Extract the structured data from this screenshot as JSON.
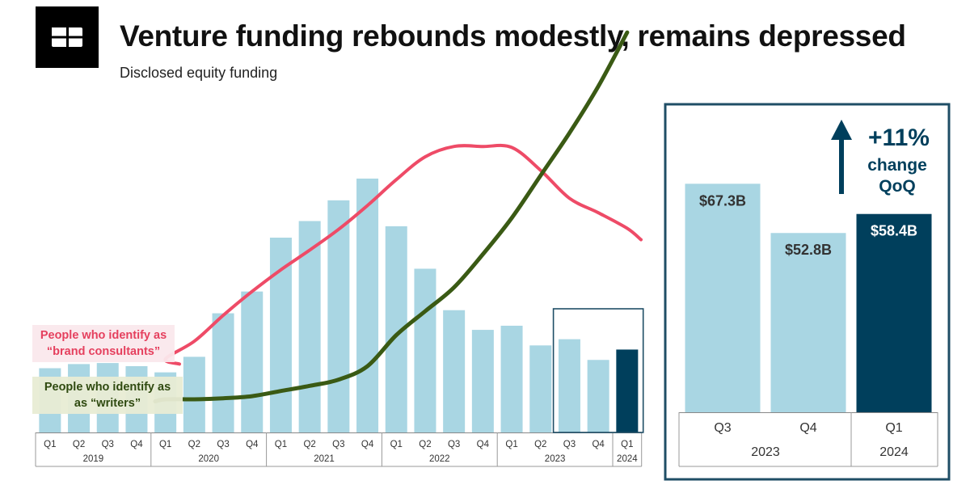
{
  "header": {
    "logo_icon": "cb-insights-logo-icon",
    "title": "Venture funding rebounds modestly, remains depressed",
    "subtitle": "Disclosed equity funding"
  },
  "colors": {
    "bar_light": "#a9d6e3",
    "bar_dark": "#003f5c",
    "brand_line": "#ee4b67",
    "writers_line": "#3a5a14",
    "frame": "#1f4e66",
    "axis_text": "#333333"
  },
  "chart_data": [
    {
      "type": "bar",
      "title": "",
      "categories": [
        "Q1",
        "Q2",
        "Q3",
        "Q4",
        "Q1",
        "Q2",
        "Q3",
        "Q4",
        "Q1",
        "Q2",
        "Q3",
        "Q4",
        "Q1",
        "Q2",
        "Q3",
        "Q4",
        "Q1",
        "Q2",
        "Q3",
        "Q4",
        "Q1"
      ],
      "category_years": [
        "2019",
        "2019",
        "2019",
        "2019",
        "2020",
        "2020",
        "2020",
        "2020",
        "2021",
        "2021",
        "2021",
        "2021",
        "2022",
        "2022",
        "2022",
        "2022",
        "2023",
        "2023",
        "2023",
        "2023",
        "2024"
      ],
      "year_groups": [
        {
          "label": "2019",
          "count": 4
        },
        {
          "label": "2020",
          "count": 4
        },
        {
          "label": "2021",
          "count": 4
        },
        {
          "label": "2022",
          "count": 4
        },
        {
          "label": "2023",
          "count": 4
        },
        {
          "label": "2024",
          "count": 1
        }
      ],
      "values": [
        62,
        66,
        67,
        64,
        58,
        73,
        115,
        136,
        188,
        204,
        224,
        245,
        199,
        158,
        118,
        99,
        103,
        84,
        90,
        70,
        80
      ],
      "highlight_index": 20,
      "ylim": [
        0,
        270
      ],
      "grid": false,
      "overlays": [
        {
          "name": "People who identify as “brand consultants”",
          "label_lines": [
            "People who identify as",
            "“brand consultants”"
          ],
          "y": [
            null,
            null,
            null,
            null,
            71,
            88,
            113,
            136,
            157,
            176,
            196,
            219,
            244,
            266,
            276,
            276,
            275,
            253,
            226,
            212,
            197
          ]
        },
        {
          "name": "People who identify as “writers”",
          "label_lines": [
            "People who identify as",
            "as “writers”"
          ],
          "y": [
            null,
            null,
            null,
            null,
            32,
            32,
            33,
            35,
            40,
            45,
            51,
            64,
            94,
            117,
            140,
            172,
            207,
            248,
            289,
            334,
            386
          ]
        }
      ]
    },
    {
      "type": "bar",
      "title": "",
      "categories": [
        "Q3",
        "Q4",
        "Q1"
      ],
      "category_years": [
        "2023",
        "2023",
        "2024"
      ],
      "year_groups": [
        {
          "label": "2023",
          "count": 2
        },
        {
          "label": "2024",
          "count": 1
        }
      ],
      "values": [
        67.3,
        52.8,
        58.4
      ],
      "value_labels": [
        "$67.3B",
        "$52.8B",
        "$58.4B"
      ],
      "highlight_index": 2,
      "ylim": [
        0,
        70
      ],
      "annotation": {
        "icon": "up-arrow-icon",
        "lines": [
          "+11%",
          "change",
          "QoQ"
        ]
      }
    }
  ]
}
